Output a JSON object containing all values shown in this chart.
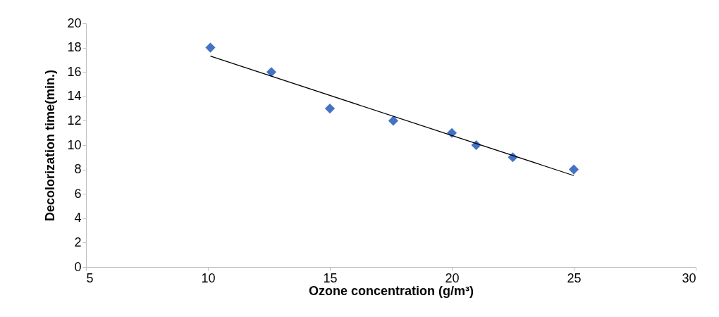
{
  "chart_data": {
    "type": "scatter",
    "xlabel": "Ozone concentration (g/m³)",
    "ylabel": "Decolorization time(min.)",
    "x": [
      10.1,
      12.6,
      15,
      17.6,
      20,
      21,
      22.5,
      25
    ],
    "series": [
      {
        "color": "#4472c4",
        "marker": "diamond",
        "values": [
          18,
          16,
          13,
          12,
          11,
          10,
          9,
          8
        ]
      },
      {
        "type": "line",
        "color": "#000000",
        "x": [
          10.1,
          25
        ],
        "values": [
          17.3,
          7.5
        ]
      }
    ],
    "xlim": [
      5,
      30
    ],
    "xticks": [
      5,
      10,
      15,
      20,
      25,
      30
    ],
    "ylim": [
      0,
      20
    ],
    "yticks": [
      0,
      2,
      4,
      6,
      8,
      10,
      12,
      14,
      16,
      18,
      20
    ],
    "grid": false
  }
}
